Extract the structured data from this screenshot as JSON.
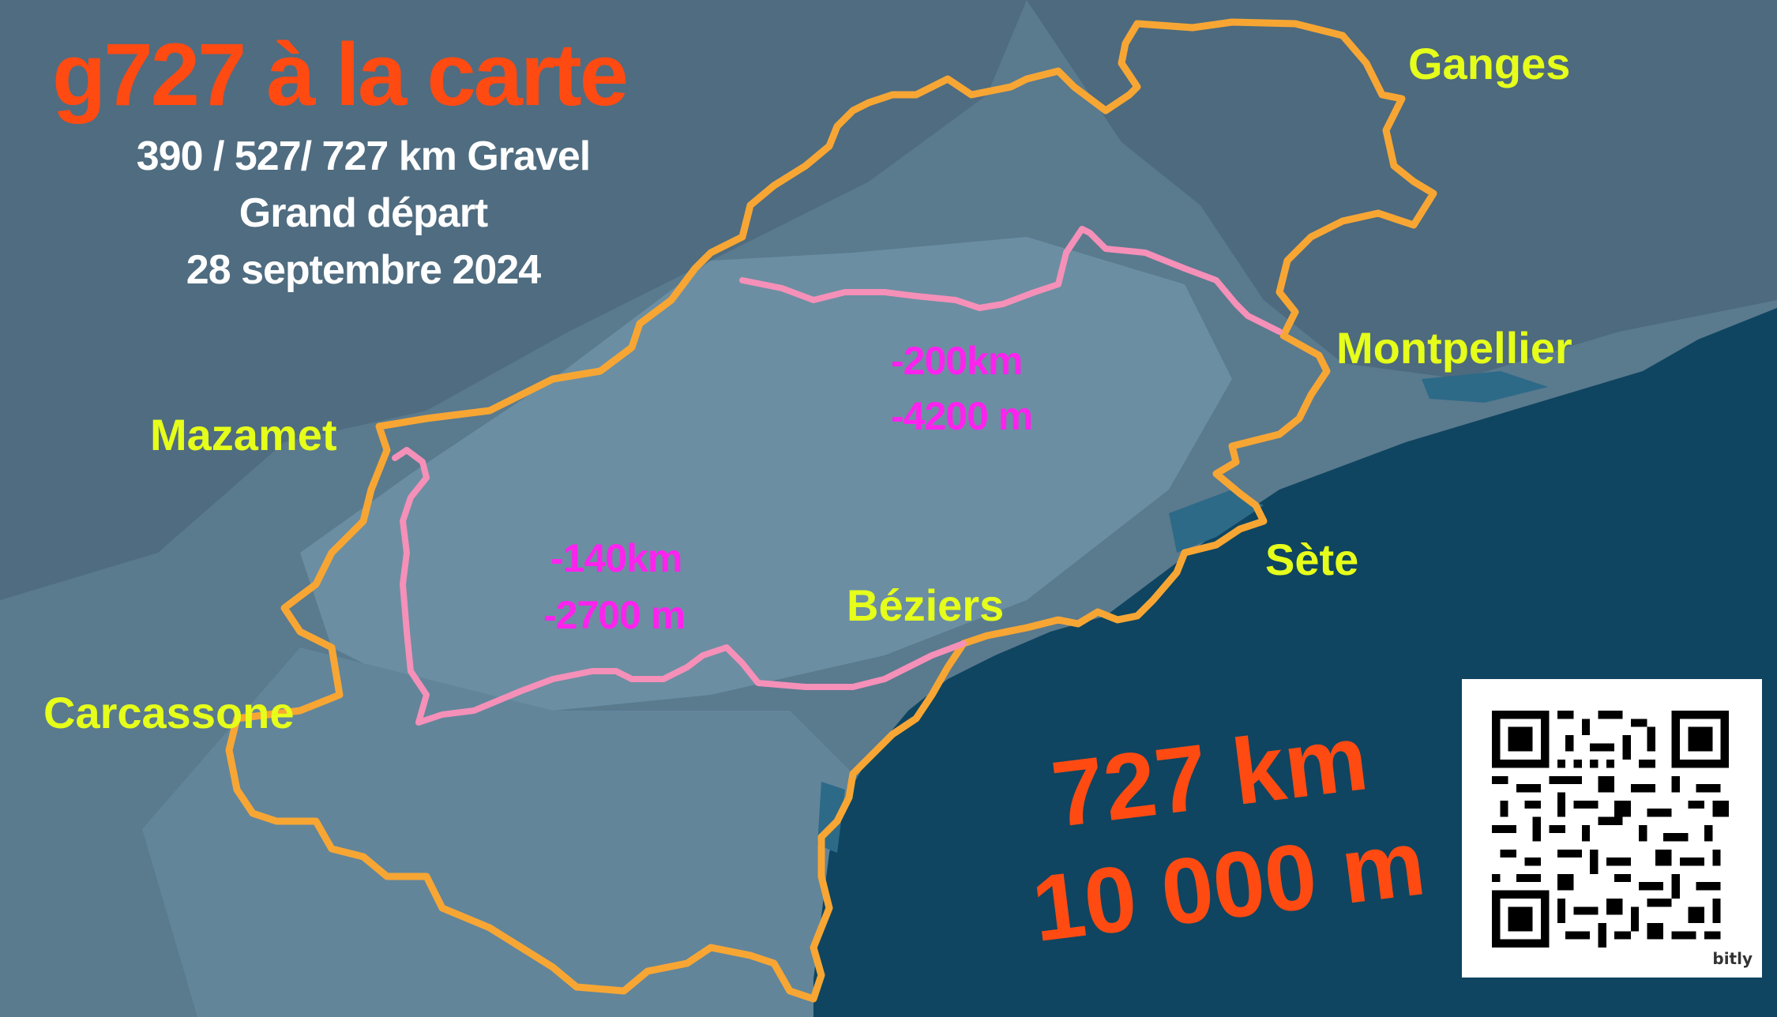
{
  "poster": {
    "title": "g727 à la carte",
    "line1": "390 / 527/ 727 km Gravel",
    "line2": "Grand départ",
    "line3": "28 septembre 2024"
  },
  "cities": {
    "ganges": "Ganges",
    "montpellier": "Montpellier",
    "mazamet": "Mazamet",
    "sete": "Sète",
    "beziers": "Béziers",
    "carcassone": "Carcassone"
  },
  "segments": {
    "east": {
      "distance": "-200km",
      "elevation": "-4200 m"
    },
    "west": {
      "distance": "-140km",
      "elevation": "-2700 m"
    }
  },
  "totals": {
    "distance": "727 km",
    "elevation": "10 000 m"
  },
  "qr": {
    "brand": "bitly"
  },
  "colors": {
    "land": "#5a7a8e",
    "sea": "#0f4560",
    "route_full": "#f7a634",
    "route_short": "#f590b8",
    "title": "#ff4a12",
    "city_label": "#e6ff1a",
    "segment_label": "#ff22ee"
  }
}
